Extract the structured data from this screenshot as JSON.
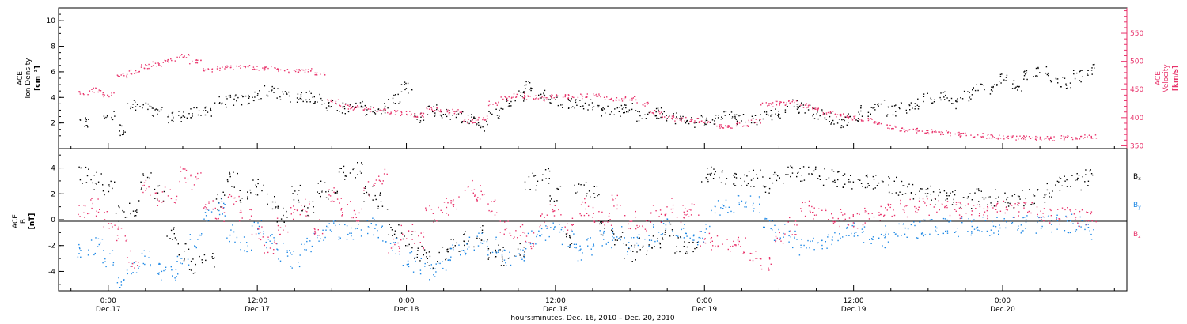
{
  "chart_data": [
    {
      "type": "scatter",
      "panel": "plasma",
      "colors": {
        "ion_density": "#000000",
        "velocity": "#e8336b"
      },
      "left_axis": {
        "label_lines": [
          "ACE",
          "Ion Density"
        ],
        "unit": "[cm⁻³]",
        "ylim": [
          0,
          11
        ],
        "ticks": [
          2,
          4,
          6,
          8,
          10
        ],
        "tick_labels": [
          "2",
          "4",
          "6",
          "8",
          "10"
        ]
      },
      "right_axis": {
        "label_lines": [
          "ACE",
          "Velocity"
        ],
        "unit": "[km/s]",
        "ylim": [
          345,
          595
        ],
        "ticks": [
          350,
          400,
          450,
          500,
          550
        ],
        "tick_labels": [
          "350",
          "400",
          "450",
          "500",
          "550"
        ]
      },
      "series": [
        {
          "key": "ion_density",
          "axis": "left",
          "x_hours": [
            -2,
            0,
            1,
            2,
            3,
            4,
            5,
            6,
            7,
            8,
            9,
            10,
            11,
            12,
            13,
            14,
            15,
            16,
            17,
            18,
            19,
            20,
            21,
            22,
            23,
            24,
            25,
            26,
            27,
            28,
            29,
            30,
            31,
            32,
            33,
            34,
            35,
            36,
            37,
            38,
            39,
            40,
            41,
            42,
            43,
            44,
            45,
            46,
            47,
            48,
            49,
            50,
            51,
            52,
            53,
            54,
            55,
            56,
            57,
            58,
            59,
            60,
            61,
            62,
            63,
            64,
            65,
            66,
            67,
            68,
            69,
            70,
            71,
            72,
            73,
            74,
            75,
            76,
            77,
            78,
            79
          ],
          "values": [
            2.0,
            2.6,
            1.5,
            3.5,
            3.2,
            2.8,
            2.5,
            2.6,
            2.8,
            3.0,
            3.7,
            3.8,
            3.8,
            4.2,
            4.5,
            4.3,
            4.0,
            4.1,
            3.9,
            3.4,
            3.2,
            3.3,
            3.1,
            3.2,
            4.0,
            4.8,
            2.5,
            3.0,
            2.8,
            2.5,
            2.3,
            1.8,
            2.8,
            3.5,
            4.2,
            5.0,
            4.2,
            3.8,
            3.6,
            3.6,
            3.5,
            3.0,
            3.0,
            3.2,
            2.6,
            2.8,
            2.5,
            2.4,
            2.1,
            2.2,
            2.4,
            2.6,
            2.3,
            2.3,
            2.7,
            2.8,
            3.5,
            3.2,
            2.8,
            2.4,
            2.1,
            2.5,
            3.0,
            3.5,
            3.0,
            3.2,
            3.5,
            4.0,
            4.3,
            3.6,
            4.2,
            4.8,
            4.7,
            5.5,
            5.0,
            5.8,
            6.1,
            5.6,
            5.2,
            5.7,
            6.2
          ]
        },
        {
          "key": "velocity",
          "axis": "right",
          "x_hours": [
            -2,
            -1,
            0,
            1,
            2,
            3,
            4,
            5,
            6,
            7,
            8,
            9,
            10,
            11,
            12,
            13,
            14,
            15,
            16,
            17,
            18,
            19,
            20,
            21,
            22,
            23,
            24,
            25,
            26,
            27,
            28,
            29,
            30,
            31,
            32,
            33,
            34,
            35,
            36,
            37,
            38,
            39,
            40,
            41,
            42,
            43,
            44,
            45,
            46,
            47,
            48,
            49,
            50,
            51,
            52,
            53,
            54,
            55,
            56,
            57,
            58,
            59,
            60,
            61,
            62,
            63,
            64,
            65,
            66,
            67,
            68,
            69,
            70,
            71,
            72,
            73,
            74,
            75,
            76,
            77,
            78,
            79
          ],
          "values": [
            445,
            450,
            442,
            475,
            482,
            492,
            496,
            502,
            510,
            500,
            486,
            488,
            490,
            492,
            488,
            488,
            485,
            483,
            485,
            480,
            430,
            420,
            418,
            415,
            412,
            410,
            408,
            405,
            415,
            411,
            412,
            395,
            400,
            426,
            435,
            440,
            436,
            434,
            438,
            438,
            439,
            440,
            436,
            434,
            435,
            425,
            410,
            400,
            398,
            396,
            392,
            386,
            385,
            388,
            395,
            424,
            426,
            428,
            422,
            416,
            410,
            406,
            400,
            396,
            390,
            385,
            380,
            378,
            376,
            374,
            372,
            370,
            369,
            367,
            366,
            365,
            365,
            364,
            364,
            365,
            365,
            367
          ]
        }
      ]
    },
    {
      "type": "scatter",
      "panel": "magnetic_field",
      "axis": {
        "label_lines": [
          "ACE",
          "B"
        ],
        "unit": "[nT]",
        "ylim": [
          -5.5,
          5.5
        ],
        "ticks": [
          -4,
          -2,
          0,
          2,
          4
        ],
        "tick_labels": [
          "-4",
          "-2",
          "0",
          "2",
          "4"
        ]
      },
      "legend_position": "right",
      "series": [
        {
          "key": "bx",
          "name_main": "B",
          "name_sub": "x",
          "color": "#000000",
          "x_hours": [
            -2,
            -1,
            0,
            1,
            2,
            3,
            4,
            5,
            6,
            7,
            8,
            9,
            10,
            11,
            12,
            13,
            14,
            15,
            16,
            17,
            18,
            19,
            20,
            21,
            22,
            23,
            24,
            25,
            26,
            27,
            28,
            29,
            30,
            31,
            32,
            33,
            34,
            35,
            36,
            37,
            38,
            39,
            40,
            41,
            42,
            43,
            44,
            45,
            46,
            47,
            48,
            49,
            50,
            51,
            52,
            53,
            54,
            55,
            56,
            57,
            58,
            59,
            60,
            61,
            62,
            63,
            64,
            65,
            66,
            67,
            68,
            69,
            70,
            71,
            72,
            73,
            74,
            75,
            76,
            77,
            78,
            79
          ],
          "values": [
            3.5,
            3.0,
            2.5,
            0.5,
            1.0,
            3.0,
            2.0,
            -1.0,
            -2.5,
            -3.5,
            -3.0,
            1.5,
            3.0,
            2.0,
            2.5,
            1.5,
            0.5,
            2.0,
            1.0,
            2.5,
            2.0,
            3.5,
            3.8,
            2.0,
            1.5,
            -1.0,
            -1.5,
            -2.5,
            -3.0,
            -2.5,
            -2.0,
            -1.5,
            -1.0,
            -2.5,
            -2.8,
            -2.5,
            3.0,
            3.5,
            2.0,
            -1.5,
            2.5,
            2.0,
            -0.5,
            -1.5,
            -2.5,
            -2.0,
            -1.5,
            -1.0,
            -2.0,
            -2.0,
            3.5,
            3.4,
            3.3,
            3.3,
            3.2,
            2.8,
            3.5,
            3.9,
            3.7,
            3.5,
            3.4,
            3.2,
            3.0,
            2.9,
            2.8,
            2.7,
            2.5,
            2.3,
            2.0,
            1.8,
            1.7,
            1.6,
            1.8,
            1.7,
            1.5,
            1.6,
            1.8,
            2.0,
            2.4,
            2.8,
            3.0,
            3.2
          ]
        },
        {
          "key": "by",
          "name_main": "B",
          "name_sub": "y",
          "color": "#1e88e5",
          "x_hours": [
            -2,
            -1,
            0,
            1,
            2,
            3,
            4,
            5,
            6,
            7,
            8,
            9,
            10,
            11,
            12,
            13,
            14,
            15,
            16,
            17,
            18,
            19,
            20,
            21,
            22,
            23,
            24,
            25,
            26,
            27,
            28,
            29,
            30,
            31,
            32,
            33,
            34,
            35,
            36,
            37,
            38,
            39,
            40,
            41,
            42,
            43,
            44,
            45,
            46,
            47,
            48,
            49,
            50,
            51,
            52,
            53,
            54,
            55,
            56,
            57,
            58,
            59,
            60,
            61,
            62,
            63,
            64,
            65,
            66,
            67,
            68,
            69,
            70,
            71,
            72,
            73,
            74,
            75,
            76,
            77,
            78,
            79
          ],
          "values": [
            -2.5,
            -2.0,
            -3.0,
            -4.5,
            -3.5,
            -3.0,
            -4.0,
            -4.2,
            -3.5,
            -1.5,
            0.5,
            1.0,
            -1.0,
            -2.0,
            -0.5,
            -1.5,
            -2.5,
            -3.0,
            -2.0,
            -1.0,
            -0.5,
            -1.0,
            -1.0,
            -0.5,
            -1.0,
            -2.0,
            -3.0,
            -3.5,
            -4.0,
            -3.5,
            -2.5,
            -2.0,
            -1.5,
            -2.0,
            -3.0,
            -2.5,
            -1.5,
            -1.0,
            -0.5,
            -1.5,
            -2.5,
            -2.0,
            -1.5,
            -1.0,
            -2.0,
            -1.5,
            -1.0,
            -0.5,
            -1.0,
            -1.5,
            -1.0,
            1.0,
            1.2,
            1.3,
            1.2,
            -0.5,
            -1.0,
            -1.5,
            -2.0,
            -1.8,
            -1.5,
            -1.0,
            -0.8,
            -1.2,
            -1.5,
            -1.0,
            -0.8,
            -0.7,
            -0.6,
            -0.5,
            -0.6,
            -0.5,
            -0.4,
            -0.5,
            -0.4,
            -0.3,
            -0.3,
            -0.4,
            -0.3,
            -0.3,
            -0.2,
            -1.0
          ]
        },
        {
          "key": "bz",
          "name_main": "B",
          "name_sub": "z",
          "color": "#e8336b",
          "x_hours": [
            -2,
            -1,
            0,
            1,
            2,
            3,
            4,
            5,
            6,
            7,
            8,
            9,
            10,
            11,
            12,
            13,
            14,
            15,
            16,
            17,
            18,
            19,
            20,
            21,
            22,
            23,
            24,
            25,
            26,
            27,
            28,
            29,
            30,
            31,
            32,
            33,
            34,
            35,
            36,
            37,
            38,
            39,
            40,
            41,
            42,
            43,
            44,
            45,
            46,
            47,
            48,
            49,
            50,
            51,
            52,
            53,
            54,
            55,
            56,
            57,
            58,
            59,
            60,
            61,
            62,
            63,
            64,
            65,
            66,
            67,
            68,
            69,
            70,
            71,
            72,
            73,
            74,
            75,
            76,
            77,
            78,
            79
          ],
          "values": [
            0.5,
            1.0,
            0.0,
            -1.0,
            -3.0,
            2.5,
            1.5,
            2.0,
            3.5,
            3.0,
            1.0,
            0.5,
            1.5,
            0.5,
            -1.0,
            -2.0,
            -0.5,
            0.5,
            1.0,
            -0.5,
            2.0,
            1.0,
            0.5,
            2.5,
            3.5,
            -2.0,
            -1.0,
            -1.5,
            0.5,
            1.0,
            1.5,
            2.5,
            2.0,
            1.0,
            -0.5,
            -1.0,
            -1.5,
            0.0,
            1.0,
            -0.5,
            1.0,
            0.5,
            0.0,
            1.5,
            0.0,
            -0.5,
            0.5,
            1.0,
            0.5,
            0.8,
            -1.5,
            -1.6,
            -1.8,
            -2.0,
            -2.5,
            -3.5,
            -1.5,
            -0.5,
            1.0,
            0.5,
            0.3,
            0.2,
            0.0,
            0.3,
            0.5,
            0.8,
            0.9,
            1.0,
            1.0,
            0.9,
            0.9,
            0.8,
            0.8,
            0.7,
            0.8,
            0.9,
            0.7,
            0.5,
            0.4,
            0.3,
            0.2,
            0.2
          ]
        }
      ]
    }
  ],
  "x_axis": {
    "xlim_hours": [
      -4,
      82
    ],
    "ticks": [
      {
        "hour": 0,
        "time": "0:00",
        "day": "Dec.17"
      },
      {
        "hour": 12,
        "time": "12:00",
        "day": "Dec.17"
      },
      {
        "hour": 24,
        "time": "0:00",
        "day": "Dec.18"
      },
      {
        "hour": 36,
        "time": "12:00",
        "day": "Dec.18"
      },
      {
        "hour": 48,
        "time": "0:00",
        "day": "Dec.19"
      },
      {
        "hour": 60,
        "time": "12:00",
        "day": "Dec.19"
      },
      {
        "hour": 72,
        "time": "0:00",
        "day": "Dec.20"
      }
    ],
    "label": "hours:minutes, Dec. 16, 2010 – Dec. 20, 2010"
  }
}
